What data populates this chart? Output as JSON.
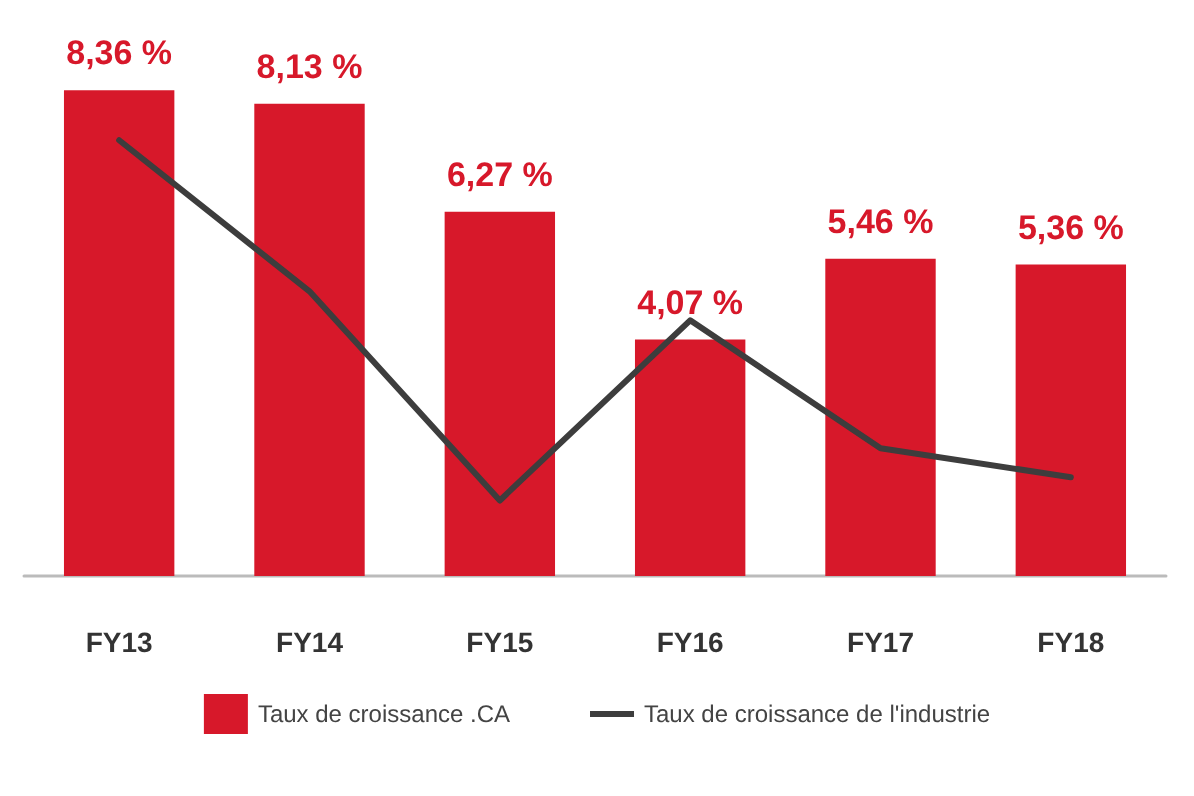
{
  "chart_data": {
    "type": "bar",
    "categories": [
      "FY13",
      "FY14",
      "FY15",
      "FY16",
      "FY17",
      "FY18"
    ],
    "series": [
      {
        "name": "Taux de croissance .CA",
        "color": "#d7182a",
        "values": [
          8.36,
          8.13,
          6.27,
          4.07,
          5.46,
          5.36
        ],
        "value_labels": [
          "8,36 %",
          "8,13 %",
          "6,27 %",
          "4,07 %",
          "5,46 %",
          "5,36 %"
        ]
      },
      {
        "name": "Taux de croissance de l'industrie",
        "type": "line",
        "color": "#3d3d3d",
        "values": [
          7.5,
          4.9,
          1.3,
          4.4,
          2.2,
          1.7
        ]
      }
    ],
    "grid": false,
    "legend": "bottom",
    "marker": "none",
    "line_style": "solid"
  }
}
